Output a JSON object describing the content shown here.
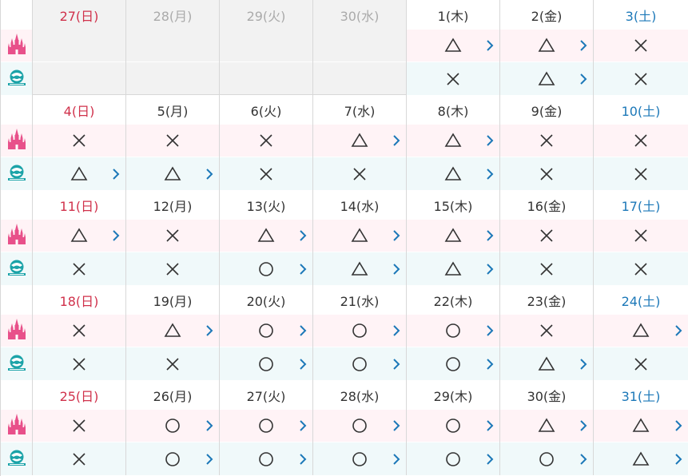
{
  "legend": {
    "land_icon": "castle-icon",
    "sea_icon": "globe-icon"
  },
  "colors": {
    "sunday": "#d0314b",
    "saturday": "#1c78b8",
    "land_row_bg": "#fff3f6",
    "sea_row_bg": "#f0f9fa",
    "land_icon": "#e8508a",
    "sea_icon": "#1ba3a8",
    "chevron": "#1c78b8",
    "outside_bg": "#f2f2f2"
  },
  "status_symbols": {
    "triangle": "△",
    "circle": "○",
    "cross": "×"
  },
  "weeks": [
    {
      "days": [
        {
          "label": "27(日)",
          "weekday": "sun",
          "outside": true,
          "land": "",
          "land_link": false,
          "sea": "",
          "sea_link": false
        },
        {
          "label": "28(月)",
          "weekday": "mon",
          "outside": true,
          "land": "",
          "land_link": false,
          "sea": "",
          "sea_link": false
        },
        {
          "label": "29(火)",
          "weekday": "tue",
          "outside": true,
          "land": "",
          "land_link": false,
          "sea": "",
          "sea_link": false
        },
        {
          "label": "30(水)",
          "weekday": "wed",
          "outside": true,
          "land": "",
          "land_link": false,
          "sea": "",
          "sea_link": false
        },
        {
          "label": "1(木)",
          "weekday": "thu",
          "outside": false,
          "land": "triangle",
          "land_link": true,
          "sea": "cross",
          "sea_link": false
        },
        {
          "label": "2(金)",
          "weekday": "fri",
          "outside": false,
          "land": "triangle",
          "land_link": true,
          "sea": "triangle",
          "sea_link": true
        },
        {
          "label": "3(土)",
          "weekday": "sat",
          "outside": false,
          "land": "cross",
          "land_link": false,
          "sea": "cross",
          "sea_link": false
        }
      ]
    },
    {
      "days": [
        {
          "label": "4(日)",
          "weekday": "sun",
          "outside": false,
          "land": "cross",
          "land_link": false,
          "sea": "triangle",
          "sea_link": true
        },
        {
          "label": "5(月)",
          "weekday": "mon",
          "outside": false,
          "land": "cross",
          "land_link": false,
          "sea": "triangle",
          "sea_link": true
        },
        {
          "label": "6(火)",
          "weekday": "tue",
          "outside": false,
          "land": "cross",
          "land_link": false,
          "sea": "cross",
          "sea_link": false
        },
        {
          "label": "7(水)",
          "weekday": "wed",
          "outside": false,
          "land": "triangle",
          "land_link": true,
          "sea": "cross",
          "sea_link": false
        },
        {
          "label": "8(木)",
          "weekday": "thu",
          "outside": false,
          "land": "triangle",
          "land_link": true,
          "sea": "triangle",
          "sea_link": true
        },
        {
          "label": "9(金)",
          "weekday": "fri",
          "outside": false,
          "land": "cross",
          "land_link": false,
          "sea": "cross",
          "sea_link": false
        },
        {
          "label": "10(土)",
          "weekday": "sat",
          "outside": false,
          "land": "cross",
          "land_link": false,
          "sea": "cross",
          "sea_link": false
        }
      ]
    },
    {
      "days": [
        {
          "label": "11(日)",
          "weekday": "sun",
          "outside": false,
          "land": "triangle",
          "land_link": true,
          "sea": "cross",
          "sea_link": false
        },
        {
          "label": "12(月)",
          "weekday": "mon",
          "outside": false,
          "land": "cross",
          "land_link": false,
          "sea": "cross",
          "sea_link": false
        },
        {
          "label": "13(火)",
          "weekday": "tue",
          "outside": false,
          "land": "triangle",
          "land_link": true,
          "sea": "circle",
          "sea_link": true
        },
        {
          "label": "14(水)",
          "weekday": "wed",
          "outside": false,
          "land": "triangle",
          "land_link": true,
          "sea": "triangle",
          "sea_link": true
        },
        {
          "label": "15(木)",
          "weekday": "thu",
          "outside": false,
          "land": "triangle",
          "land_link": true,
          "sea": "triangle",
          "sea_link": true
        },
        {
          "label": "16(金)",
          "weekday": "fri",
          "outside": false,
          "land": "cross",
          "land_link": false,
          "sea": "cross",
          "sea_link": false
        },
        {
          "label": "17(土)",
          "weekday": "sat",
          "outside": false,
          "land": "cross",
          "land_link": false,
          "sea": "cross",
          "sea_link": false
        }
      ]
    },
    {
      "days": [
        {
          "label": "18(日)",
          "weekday": "sun",
          "outside": false,
          "land": "cross",
          "land_link": false,
          "sea": "cross",
          "sea_link": false
        },
        {
          "label": "19(月)",
          "weekday": "mon",
          "outside": false,
          "land": "triangle",
          "land_link": true,
          "sea": "cross",
          "sea_link": false
        },
        {
          "label": "20(火)",
          "weekday": "tue",
          "outside": false,
          "land": "circle",
          "land_link": true,
          "sea": "circle",
          "sea_link": true
        },
        {
          "label": "21(水)",
          "weekday": "wed",
          "outside": false,
          "land": "circle",
          "land_link": true,
          "sea": "circle",
          "sea_link": true
        },
        {
          "label": "22(木)",
          "weekday": "thu",
          "outside": false,
          "land": "circle",
          "land_link": true,
          "sea": "circle",
          "sea_link": true
        },
        {
          "label": "23(金)",
          "weekday": "fri",
          "outside": false,
          "land": "cross",
          "land_link": false,
          "sea": "triangle",
          "sea_link": true
        },
        {
          "label": "24(土)",
          "weekday": "sat",
          "outside": false,
          "land": "triangle",
          "land_link": true,
          "sea": "cross",
          "sea_link": false
        }
      ]
    },
    {
      "days": [
        {
          "label": "25(日)",
          "weekday": "sun",
          "outside": false,
          "land": "cross",
          "land_link": false,
          "sea": "cross",
          "sea_link": false
        },
        {
          "label": "26(月)",
          "weekday": "mon",
          "outside": false,
          "land": "circle",
          "land_link": true,
          "sea": "circle",
          "sea_link": true
        },
        {
          "label": "27(火)",
          "weekday": "tue",
          "outside": false,
          "land": "circle",
          "land_link": true,
          "sea": "circle",
          "sea_link": true
        },
        {
          "label": "28(水)",
          "weekday": "wed",
          "outside": false,
          "land": "circle",
          "land_link": true,
          "sea": "circle",
          "sea_link": true
        },
        {
          "label": "29(木)",
          "weekday": "thu",
          "outside": false,
          "land": "circle",
          "land_link": true,
          "sea": "circle",
          "sea_link": true
        },
        {
          "label": "30(金)",
          "weekday": "fri",
          "outside": false,
          "land": "triangle",
          "land_link": true,
          "sea": "circle",
          "sea_link": true
        },
        {
          "label": "31(土)",
          "weekday": "sat",
          "outside": false,
          "land": "triangle",
          "land_link": true,
          "sea": "triangle",
          "sea_link": true
        }
      ]
    }
  ]
}
